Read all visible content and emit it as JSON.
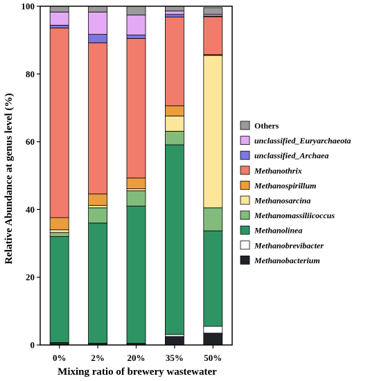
{
  "chart_data": {
    "type": "bar",
    "stacked": true,
    "categories": [
      "0%",
      "2%",
      "20%",
      "35%",
      "50%"
    ],
    "xlabel": "Mixing ratio of brewery wastewater",
    "ylabel": "Relative Abundance at genus level (%)",
    "ylim": [
      0,
      100
    ],
    "yticks": [
      0,
      20,
      40,
      60,
      80,
      100
    ],
    "legend_position": "right",
    "series": [
      {
        "name": "Methanobacterium",
        "italic": true,
        "color": "#1f2328",
        "values": [
          0.5,
          0.3,
          0.3,
          2.5,
          3.5
        ]
      },
      {
        "name": "Methanobrevibacter",
        "italic": true,
        "color": "#ffffff",
        "values": [
          0.2,
          0.2,
          0.2,
          0.6,
          2.0
        ]
      },
      {
        "name": "Methanolinea",
        "italic": true,
        "color": "#2e9463",
        "values": [
          31.3,
          35.5,
          40.5,
          56.0,
          28.2
        ]
      },
      {
        "name": "Methanomassiliicoccus",
        "italic": true,
        "color": "#83bb7d",
        "values": [
          1.2,
          4.5,
          4.5,
          4.0,
          6.8
        ]
      },
      {
        "name": "Methanosarcina",
        "italic": true,
        "color": "#fde59a",
        "values": [
          0.8,
          0.7,
          0.6,
          4.5,
          45.0
        ]
      },
      {
        "name": "Methanospirillum",
        "italic": true,
        "color": "#e99d3e",
        "values": [
          3.6,
          3.4,
          3.2,
          3.0,
          0.2
        ]
      },
      {
        "name": "Methanothrix",
        "italic": true,
        "color": "#f17c6b",
        "values": [
          56.0,
          44.6,
          41.2,
          26.2,
          11.2
        ]
      },
      {
        "name": "unclassified_Archaea",
        "italic": true,
        "color": "#7a78e0",
        "values": [
          0.8,
          2.5,
          1.0,
          0.8,
          0.2
        ]
      },
      {
        "name": "unclassified_Euryarchaeota",
        "italic": true,
        "color": "#e3a9f4",
        "values": [
          3.9,
          6.6,
          5.9,
          1.0,
          0.5
        ]
      },
      {
        "name": "Others",
        "italic": false,
        "color": "#9a9a9a",
        "values": [
          1.7,
          1.7,
          2.6,
          1.4,
          2.0
        ]
      }
    ]
  }
}
